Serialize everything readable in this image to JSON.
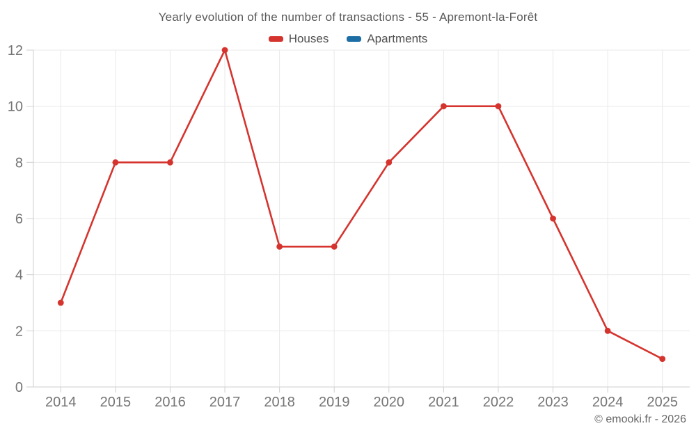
{
  "chart_data": {
    "type": "line",
    "title": "Yearly evolution of the number of transactions - 55 - Apremont-la-Forêt",
    "categories": [
      "2014",
      "2015",
      "2016",
      "2017",
      "2018",
      "2019",
      "2020",
      "2021",
      "2022",
      "2023",
      "2024",
      "2025"
    ],
    "series": [
      {
        "name": "Houses",
        "color": "#d5342e",
        "values": [
          3,
          8,
          8,
          12,
          5,
          5,
          8,
          10,
          10,
          6,
          2,
          1
        ]
      },
      {
        "name": "Apartments",
        "color": "#1c6ea4",
        "values": []
      }
    ],
    "xlabel": "",
    "ylabel": "",
    "ylim": [
      0,
      12
    ],
    "yticks": [
      0,
      2,
      4,
      6,
      8,
      10,
      12
    ],
    "grid": true,
    "legend_position": "top"
  },
  "footer": {
    "copyright": "© emooki.fr - 2026"
  }
}
